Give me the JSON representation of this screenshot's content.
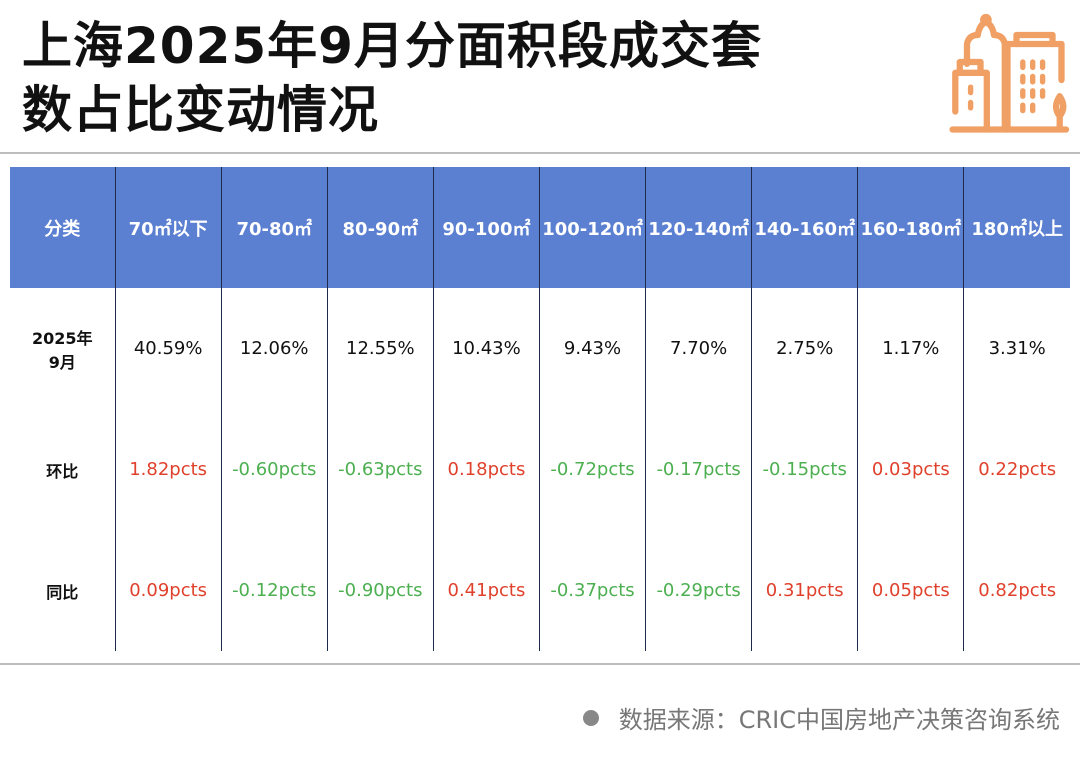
{
  "title": {
    "line1": "上海2025年9月分面积段成交套",
    "line2": "数占比变动情况"
  },
  "colors": {
    "header_bg": "#5b7fd1",
    "increase": "#e0412c",
    "decrease": "#4caf50",
    "logo": "#f0a064"
  },
  "table": {
    "headers": [
      "分类",
      "70㎡以下",
      "70-80㎡",
      "80-90㎡",
      "90-100㎡",
      "100-120㎡",
      "120-140㎡",
      "140-160㎡",
      "160-180㎡",
      "180㎡以上"
    ],
    "rows": [
      {
        "label": "2025年\n9月",
        "cells": [
          {
            "v": "40.59%",
            "t": "n"
          },
          {
            "v": "12.06%",
            "t": "n"
          },
          {
            "v": "12.55%",
            "t": "n"
          },
          {
            "v": "10.43%",
            "t": "n"
          },
          {
            "v": "9.43%",
            "t": "n"
          },
          {
            "v": "7.70%",
            "t": "n"
          },
          {
            "v": "2.75%",
            "t": "n"
          },
          {
            "v": "1.17%",
            "t": "n"
          },
          {
            "v": "3.31%",
            "t": "n"
          }
        ]
      },
      {
        "label": "环比",
        "cells": [
          {
            "v": "1.82pcts",
            "t": "up"
          },
          {
            "v": "-0.60pcts",
            "t": "down"
          },
          {
            "v": "-0.63pcts",
            "t": "down"
          },
          {
            "v": "0.18pcts",
            "t": "up"
          },
          {
            "v": "-0.72pcts",
            "t": "down"
          },
          {
            "v": "-0.17pcts",
            "t": "down"
          },
          {
            "v": "-0.15pcts",
            "t": "down"
          },
          {
            "v": "0.03pcts",
            "t": "up"
          },
          {
            "v": "0.22pcts",
            "t": "up"
          }
        ]
      },
      {
        "label": "同比",
        "cells": [
          {
            "v": "0.09pcts",
            "t": "up"
          },
          {
            "v": "-0.12pcts",
            "t": "down"
          },
          {
            "v": "-0.90pcts",
            "t": "down"
          },
          {
            "v": "0.41pcts",
            "t": "up"
          },
          {
            "v": "-0.37pcts",
            "t": "down"
          },
          {
            "v": "-0.29pcts",
            "t": "down"
          },
          {
            "v": "0.31pcts",
            "t": "up"
          },
          {
            "v": "0.05pcts",
            "t": "up"
          },
          {
            "v": "0.82pcts",
            "t": "up"
          }
        ]
      }
    ]
  },
  "source": "数据来源：CRIC中国房地产决策咨询系统",
  "logo_icon": "city-buildings-icon"
}
